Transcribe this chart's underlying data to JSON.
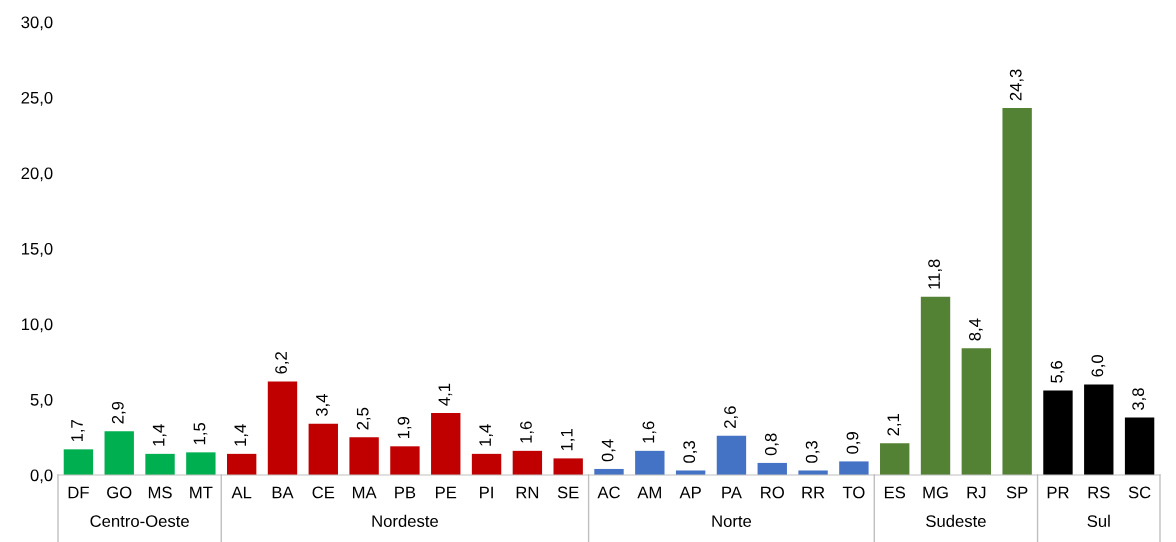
{
  "chart_data": {
    "type": "bar",
    "categories": [
      "DF",
      "GO",
      "MS",
      "MT",
      "AL",
      "BA",
      "CE",
      "MA",
      "PB",
      "PE",
      "PI",
      "RN",
      "SE",
      "AC",
      "AM",
      "AP",
      "PA",
      "RO",
      "RR",
      "TO",
      "ES",
      "MG",
      "RJ",
      "SP",
      "PR",
      "RS",
      "SC"
    ],
    "series": [
      {
        "name": "Centro-Oeste",
        "color": "#00b050",
        "values": [
          1.7,
          2.9,
          1.4,
          1.5,
          null,
          null,
          null,
          null,
          null,
          null,
          null,
          null,
          null,
          null,
          null,
          null,
          null,
          null,
          null,
          null,
          null,
          null,
          null,
          null,
          null,
          null,
          null
        ],
        "value_labels": [
          "1,7",
          "2,9",
          "1,4",
          "1,5",
          null,
          null,
          null,
          null,
          null,
          null,
          null,
          null,
          null,
          null,
          null,
          null,
          null,
          null,
          null,
          null,
          null,
          null,
          null,
          null,
          null,
          null,
          null
        ]
      },
      {
        "name": "Nordeste",
        "color": "#c00000",
        "values": [
          null,
          null,
          null,
          null,
          1.4,
          6.2,
          3.4,
          2.5,
          1.9,
          4.1,
          1.4,
          1.6,
          1.1,
          null,
          null,
          null,
          null,
          null,
          null,
          null,
          null,
          null,
          null,
          null,
          null,
          null,
          null
        ],
        "value_labels": [
          null,
          null,
          null,
          null,
          "1,4",
          "6,2",
          "3,4",
          "2,5",
          "1,9",
          "4,1",
          "1,4",
          "1,6",
          "1,1",
          null,
          null,
          null,
          null,
          null,
          null,
          null,
          null,
          null,
          null,
          null,
          null,
          null,
          null
        ]
      },
      {
        "name": "Norte",
        "color": "#4472c4",
        "values": [
          null,
          null,
          null,
          null,
          null,
          null,
          null,
          null,
          null,
          null,
          null,
          null,
          null,
          0.4,
          1.6,
          0.3,
          2.6,
          0.8,
          0.3,
          0.9,
          null,
          null,
          null,
          null,
          null,
          null,
          null
        ],
        "value_labels": [
          null,
          null,
          null,
          null,
          null,
          null,
          null,
          null,
          null,
          null,
          null,
          null,
          null,
          "0,4",
          "1,6",
          "0,3",
          "2,6",
          "0,8",
          "0,3",
          "0,9",
          null,
          null,
          null,
          null,
          null,
          null,
          null
        ]
      },
      {
        "name": "Sudeste",
        "color": "#548235",
        "values": [
          null,
          null,
          null,
          null,
          null,
          null,
          null,
          null,
          null,
          null,
          null,
          null,
          null,
          null,
          null,
          null,
          null,
          null,
          null,
          null,
          2.1,
          11.8,
          8.4,
          24.3,
          null,
          null,
          null
        ],
        "value_labels": [
          null,
          null,
          null,
          null,
          null,
          null,
          null,
          null,
          null,
          null,
          null,
          null,
          null,
          null,
          null,
          null,
          null,
          null,
          null,
          null,
          "2,1",
          "11,8",
          "8,4",
          "24,3",
          null,
          null,
          null
        ]
      },
      {
        "name": "Sul",
        "color": "#000000",
        "values": [
          null,
          null,
          null,
          null,
          null,
          null,
          null,
          null,
          null,
          null,
          null,
          null,
          null,
          null,
          null,
          null,
          null,
          null,
          null,
          null,
          null,
          null,
          null,
          null,
          5.6,
          6.0,
          3.8
        ],
        "value_labels": [
          null,
          null,
          null,
          null,
          null,
          null,
          null,
          null,
          null,
          null,
          null,
          null,
          null,
          null,
          null,
          null,
          null,
          null,
          null,
          null,
          null,
          null,
          null,
          null,
          "5,6",
          "6,0",
          "3,8"
        ]
      }
    ],
    "ylim": [
      0,
      30
    ],
    "yticks": [
      {
        "value": 0,
        "label": "0,0"
      },
      {
        "value": 5,
        "label": "5,0"
      },
      {
        "value": 10,
        "label": "10,0"
      },
      {
        "value": 15,
        "label": "15,0"
      },
      {
        "value": 20,
        "label": "20,0"
      },
      {
        "value": 25,
        "label": "25,0"
      },
      {
        "value": 30,
        "label": "30,0"
      }
    ],
    "grid": false,
    "legend": false
  }
}
